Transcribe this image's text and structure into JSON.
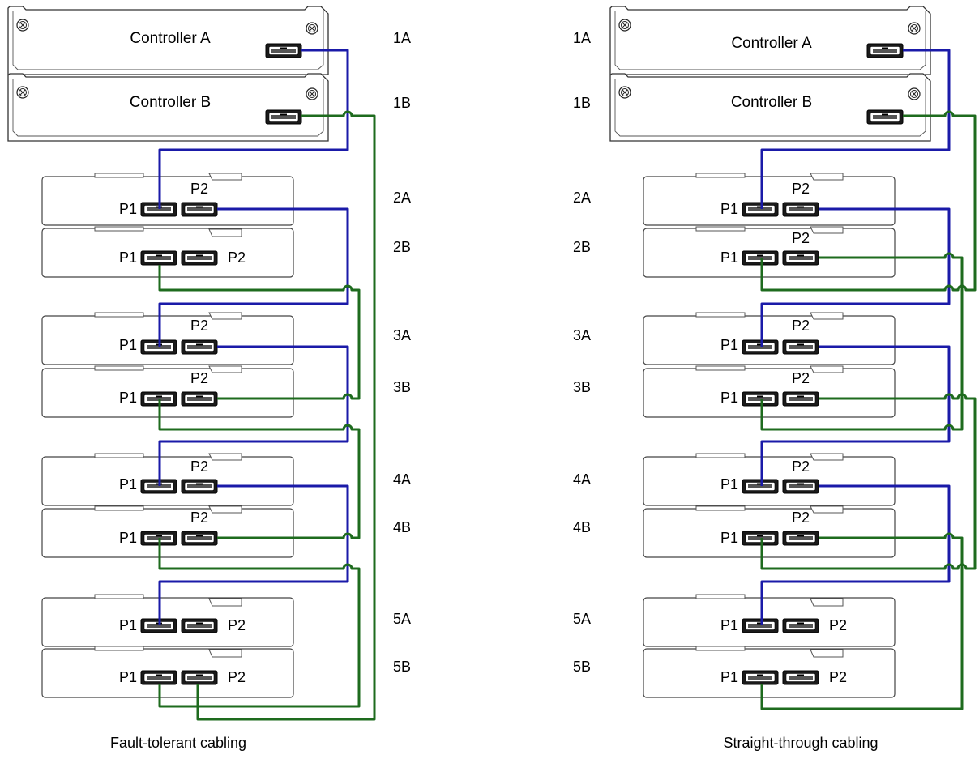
{
  "colors": {
    "cable_a": "#1a1aa8",
    "cable_b": "#1e6b1e"
  },
  "diagrams": [
    {
      "caption": "Fault-tolerant cabling",
      "controllers": [
        {
          "name": "Controller A",
          "tag": "1A"
        },
        {
          "name": "Controller B",
          "tag": "1B"
        }
      ],
      "modules": [
        {
          "tag": "2A",
          "port1": "P1",
          "port2": "P2"
        },
        {
          "tag": "2B",
          "port1": "P1",
          "port2": "P2"
        },
        {
          "tag": "3A",
          "port1": "P1",
          "port2": "P2"
        },
        {
          "tag": "3B",
          "port1": "P1",
          "port2": "P2"
        },
        {
          "tag": "4A",
          "port1": "P1",
          "port2": "P2"
        },
        {
          "tag": "4B",
          "port1": "P1",
          "port2": "P2"
        },
        {
          "tag": "5A",
          "port1": "P1",
          "port2": "P2"
        },
        {
          "tag": "5B",
          "port1": "P1",
          "port2": "P2"
        }
      ]
    },
    {
      "caption": "Straight-through cabling",
      "controllers": [
        {
          "name": "Controller A",
          "tag": "1A"
        },
        {
          "name": "Controller B",
          "tag": "1B"
        }
      ],
      "modules": [
        {
          "tag": "2A",
          "port1": "P1",
          "port2": "P2"
        },
        {
          "tag": "2B",
          "port1": "P1",
          "port2": "P2"
        },
        {
          "tag": "3A",
          "port1": "P1",
          "port2": "P2"
        },
        {
          "tag": "3B",
          "port1": "P1",
          "port2": "P2"
        },
        {
          "tag": "4A",
          "port1": "P1",
          "port2": "P2"
        },
        {
          "tag": "4B",
          "port1": "P1",
          "port2": "P2"
        },
        {
          "tag": "5A",
          "port1": "P1",
          "port2": "P2"
        },
        {
          "tag": "5B",
          "port1": "P1",
          "port2": "P2"
        }
      ]
    }
  ]
}
